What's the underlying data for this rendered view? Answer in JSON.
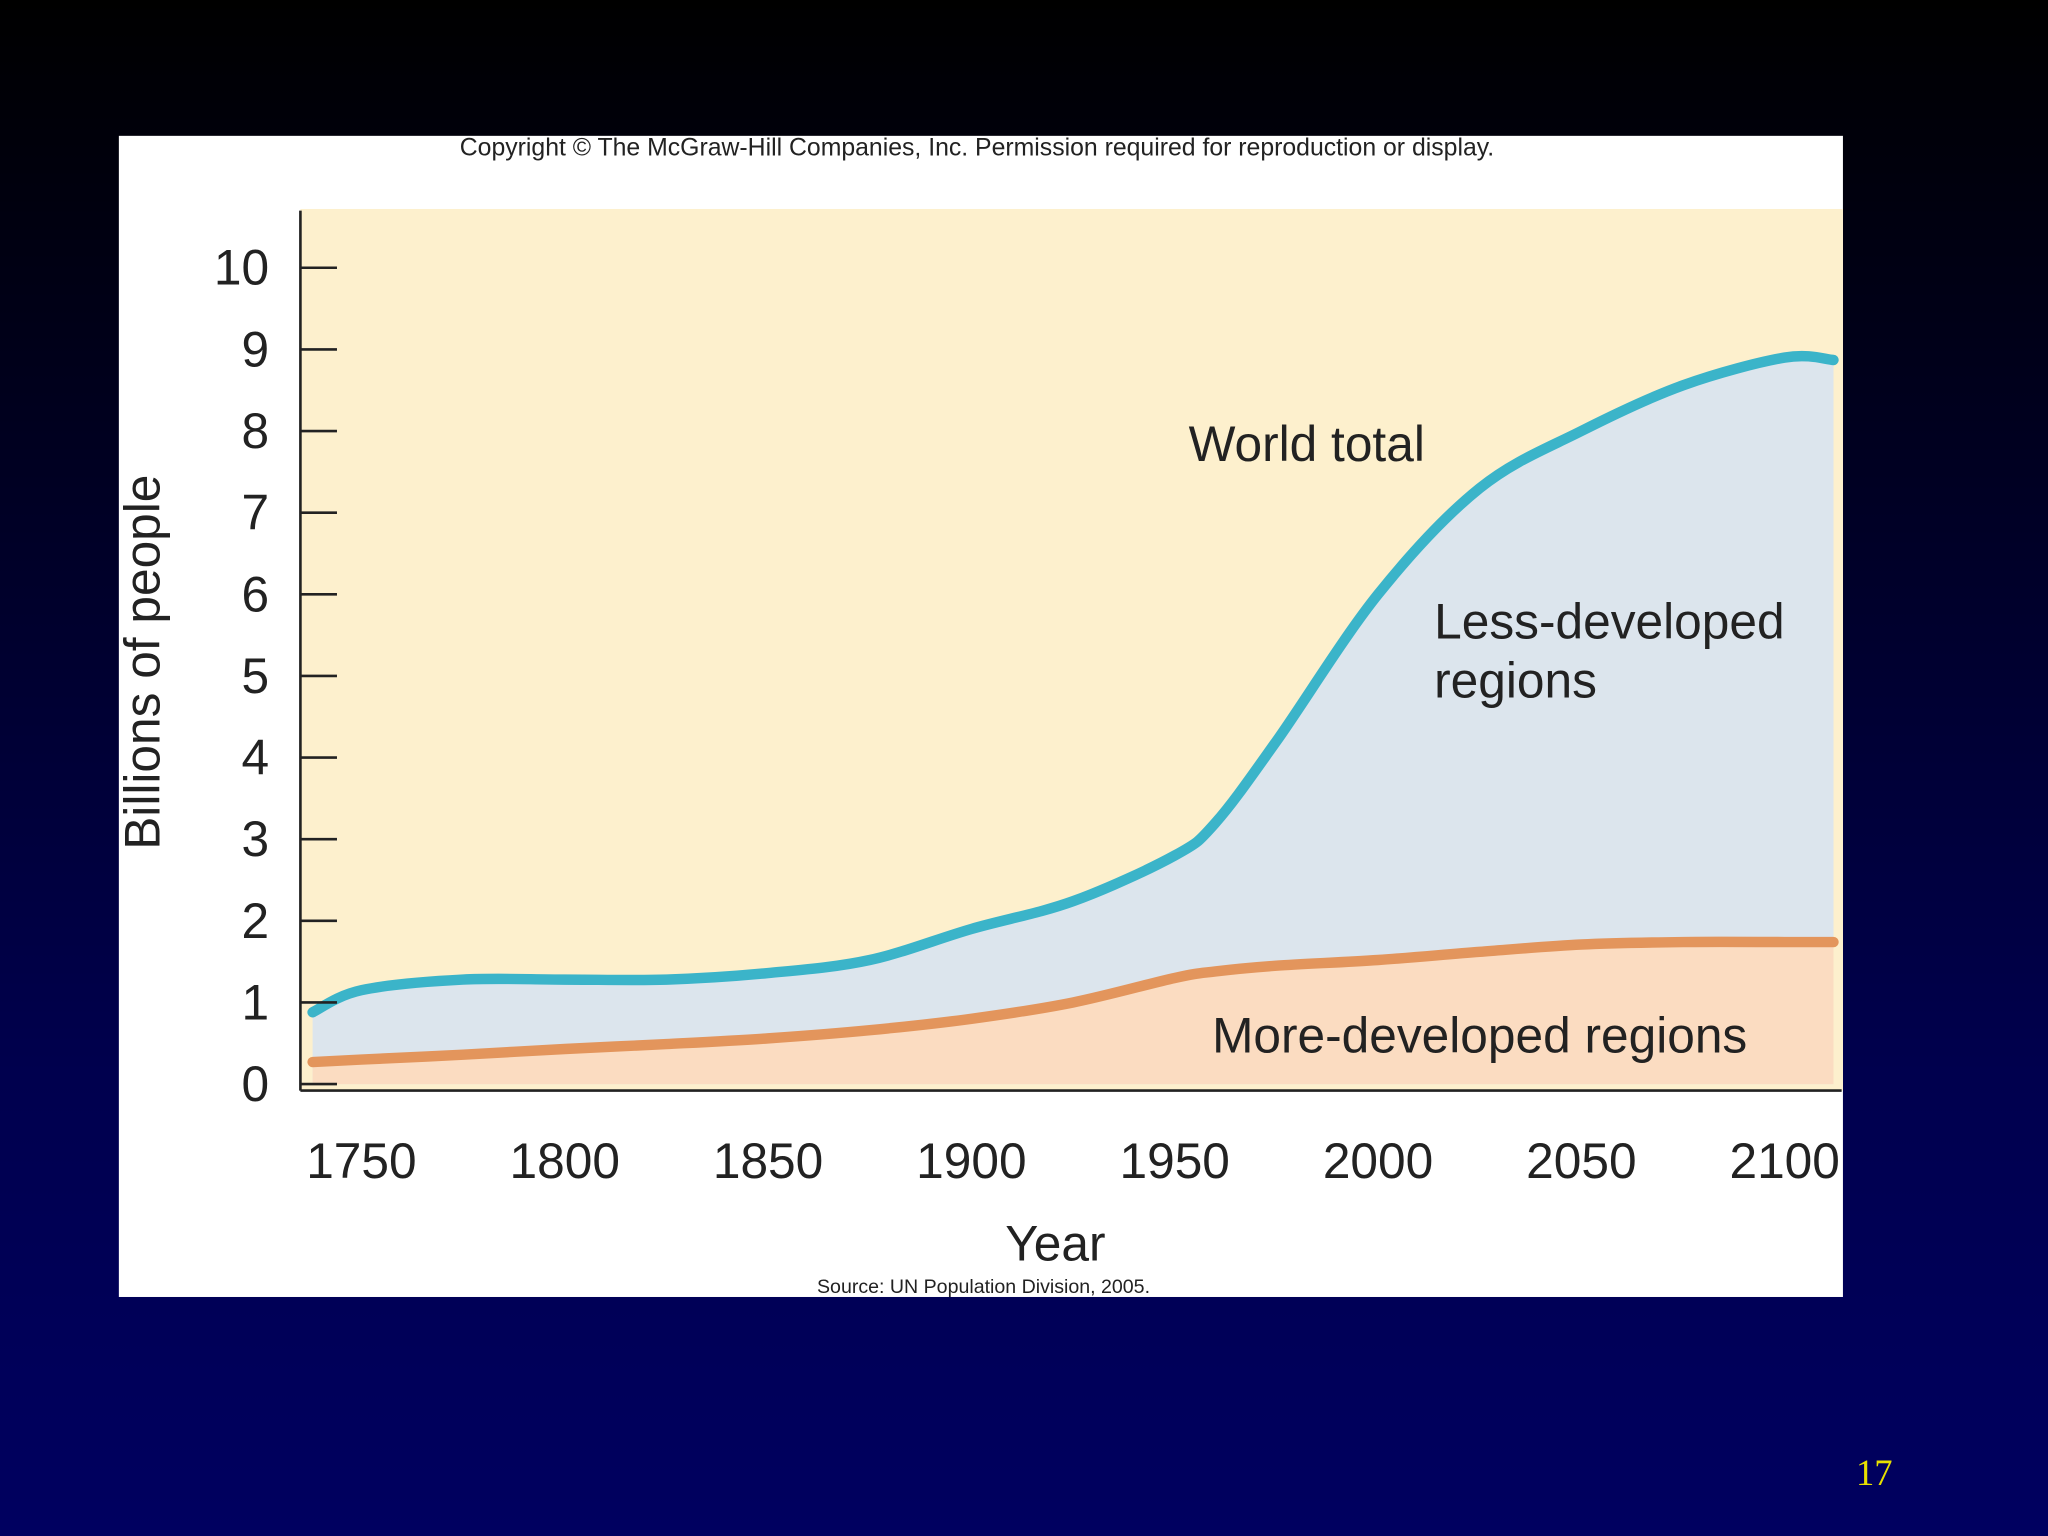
{
  "slide_number": "17",
  "chart_data": {
    "type": "area",
    "copyright": "Copyright © The McGraw-Hill Companies, Inc. Permission required for reproduction or display.",
    "source": "Source: UN Population Division, 2005.",
    "x_label": "Year",
    "y_label": "Billions of people",
    "annotation": "Less-developed regions",
    "x": [
      1738,
      1750,
      1775,
      1800,
      1825,
      1850,
      1875,
      1900,
      1925,
      1950,
      1960,
      1975,
      2000,
      2025,
      2050,
      2075,
      2100,
      2112
    ],
    "series": [
      {
        "name": "World total",
        "color": "#3bb4c9",
        "fill": "#dce5ed",
        "values": [
          0.88,
          1.15,
          1.28,
          1.28,
          1.28,
          1.36,
          1.52,
          1.9,
          2.24,
          2.8,
          3.2,
          4.2,
          6.0,
          7.3,
          8.0,
          8.56,
          8.9,
          8.87
        ]
      },
      {
        "name": "More-developed regions",
        "color": "#e3955c",
        "fill": "#fbdcc1",
        "values": [
          0.27,
          0.3,
          0.36,
          0.43,
          0.49,
          0.56,
          0.66,
          0.8,
          1.0,
          1.3,
          1.38,
          1.45,
          1.52,
          1.62,
          1.71,
          1.74,
          1.74,
          1.74
        ]
      }
    ],
    "xlim": [
      1735,
      2114
    ],
    "xticks": [
      1750,
      1800,
      1850,
      1900,
      1950,
      2000,
      2050,
      2100
    ],
    "ylim": [
      0,
      10.7
    ],
    "yticks": [
      0,
      1,
      2,
      3,
      4,
      5,
      6,
      7,
      8,
      9,
      10
    ]
  }
}
